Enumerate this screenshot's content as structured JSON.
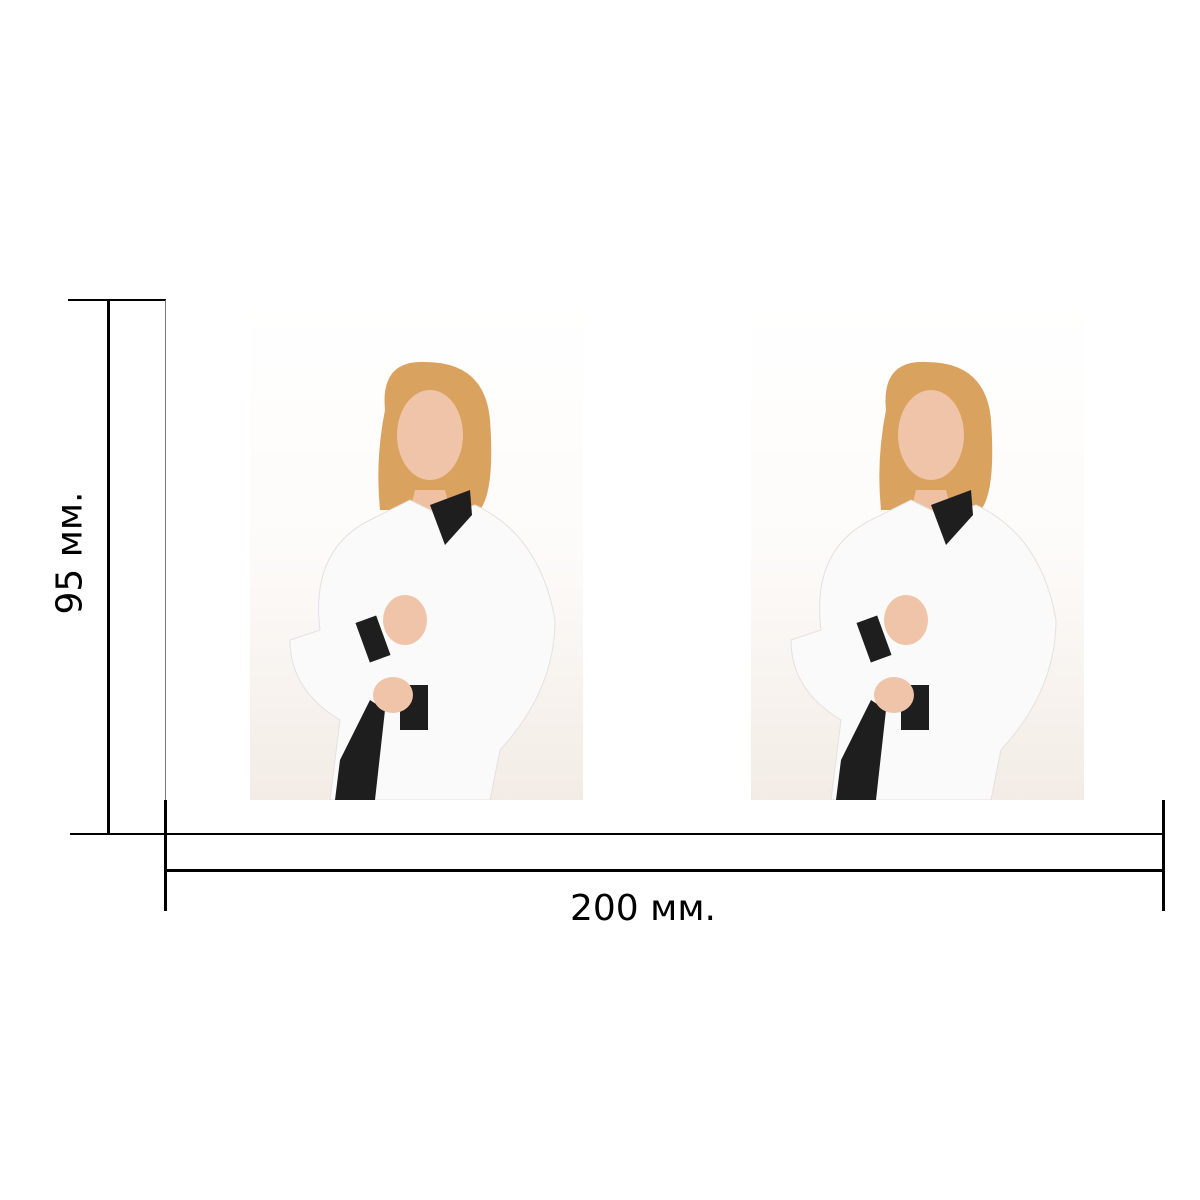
{
  "dimensions": {
    "height_label": "95 мм.",
    "width_label": "200 мм."
  },
  "photos": [
    {
      "subject": "woman-in-white-shirt"
    },
    {
      "subject": "woman-in-white-shirt"
    }
  ]
}
